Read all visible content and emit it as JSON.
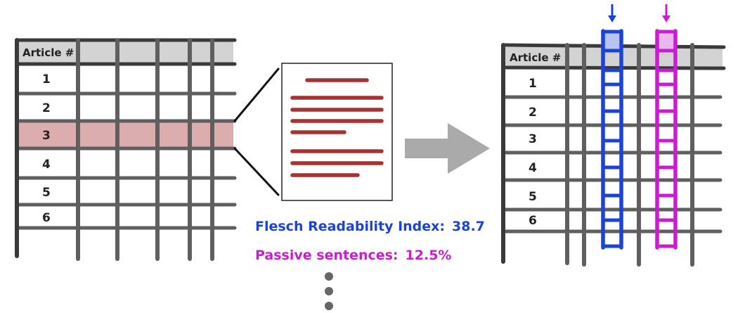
{
  "colors": {
    "grid_line": "#5f5f5f",
    "grid_border": "#3a3a3a",
    "header_fill": "#d3d3d3",
    "highlight_row": "#dbadad",
    "doc_text_line": "#a83232",
    "arrow": "#aaaaaa",
    "flesch": "#1a44d8",
    "flesch_fill": "#b9c3f0",
    "passive": "#c81ed0",
    "passive_fill": "#eab6ee",
    "dots": "#666666"
  },
  "left_table": {
    "header": "Article #",
    "rows": [
      "1",
      "2",
      "3",
      "4",
      "5",
      "6"
    ],
    "highlighted_row": "3"
  },
  "right_table": {
    "header": "Article #",
    "rows": [
      "1",
      "2",
      "3",
      "4",
      "5",
      "6"
    ]
  },
  "metrics": {
    "flesch": {
      "label": "Flesch Readability Index:",
      "value": "38.7"
    },
    "passive": {
      "label": "Passive sentences:",
      "value": "12.5%"
    }
  }
}
